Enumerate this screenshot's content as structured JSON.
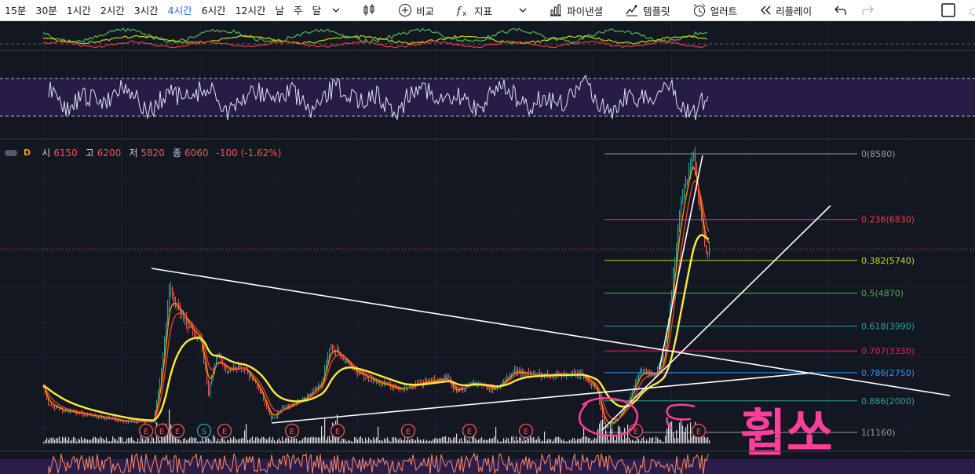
{
  "toolbar": {
    "timeframes": [
      "15분",
      "30분",
      "1시간",
      "2시간",
      "3시간",
      "4시간",
      "6시간",
      "12시간",
      "날",
      "주",
      "달"
    ],
    "active_timeframe": "4시간",
    "compare_label": "비교",
    "indicators_label": "지표",
    "fin_panel_label": "파이낸셜",
    "templates_label": "템플릿",
    "alert_label": "얼러트",
    "replay_label": "리플레이",
    "icons": [
      "chevron-down-icon",
      "candles-icon",
      "plus-circle-icon",
      "fx-icon",
      "bar-chart-icon",
      "template-icon",
      "alarm-icon",
      "rewind-icon",
      "undo-icon",
      "redo-icon",
      "square-icon",
      "cloud-icon"
    ]
  },
  "legend": {
    "interval": "D",
    "open_label": "시",
    "open": "6150",
    "high_label": "고",
    "high": "6200",
    "low_label": "저",
    "low": "5820",
    "close_label": "종",
    "close": "6060",
    "change": "-100 (-1.62%)"
  },
  "fib_levels": [
    {
      "label": "0(8580)",
      "price": 8580,
      "color": "#9598a1"
    },
    {
      "label": "0.236(6830)",
      "price": 6830,
      "color": "#f23645"
    },
    {
      "label": "0.382(5740)",
      "price": 5740,
      "color": "#c4d70a"
    },
    {
      "label": "0.5(4870)",
      "price": 4870,
      "color": "#4caf50"
    },
    {
      "label": "0.618(3990)",
      "price": 3990,
      "color": "#26a69a"
    },
    {
      "label": "0.707(3330)",
      "price": 3330,
      "color": "#e91e63"
    },
    {
      "label": "0.786(2750)",
      "price": 2750,
      "color": "#2196f3"
    },
    {
      "label": "0.886(2000)",
      "price": 2000,
      "color": "#26a69a"
    },
    {
      "label": "1(1160)",
      "price": 1160,
      "color": "#9598a1"
    }
  ],
  "event_badges": [
    "E",
    "E",
    "E",
    "S",
    "E",
    "E",
    "E",
    "E",
    "E",
    "E",
    "E",
    "E"
  ],
  "annotation_text": "휩쏘",
  "colors": {
    "bg": "#131722",
    "up": "#26a69a",
    "down": "#ef5350",
    "ma_yellow": "#ffeb3b",
    "ma_orange": "#ff9800",
    "ma_red": "#f44336",
    "pink": "#ff3d9a",
    "purple_band": "#2a1d4a"
  }
}
